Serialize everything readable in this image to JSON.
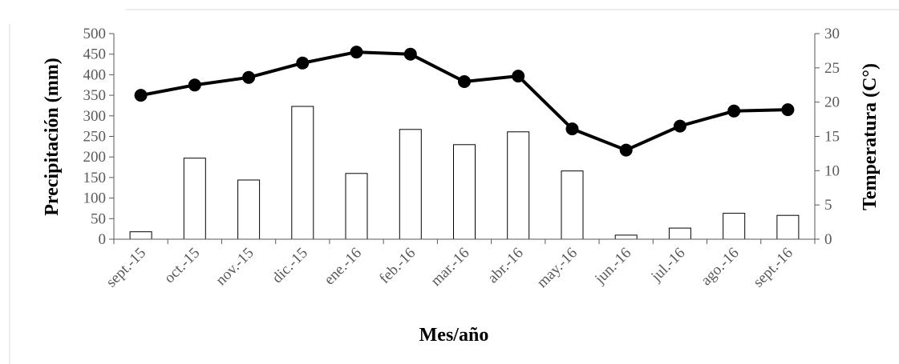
{
  "chart_data": {
    "type": "bar",
    "categories": [
      "sept.-15",
      "oct.-15",
      "nov.-15",
      "dic.-15",
      "ene.-16",
      "feb.-16",
      "mar.-16",
      "abr.-16",
      "may.-16",
      "jun.-16",
      "jul.-16",
      "ago.-16",
      "sept.-16"
    ],
    "series": [
      {
        "type": "bar",
        "axis": "left",
        "values": [
          18,
          197,
          144,
          323,
          160,
          267,
          230,
          261,
          166,
          10,
          27,
          63,
          58
        ]
      },
      {
        "type": "line",
        "axis": "right",
        "values": [
          21.0,
          22.5,
          23.6,
          25.7,
          27.3,
          27.0,
          23.0,
          23.8,
          16.1,
          13.0,
          16.5,
          18.7,
          18.9
        ]
      }
    ],
    "xlabel": "Mes/año",
    "ylabel": "Precipitación (mm)",
    "y2label": "Temperatura (C°)",
    "ylim": [
      0,
      500
    ],
    "y2lim": [
      0,
      30
    ],
    "yticks": [
      "0",
      "50",
      "100",
      "150",
      "200",
      "250",
      "300",
      "350",
      "400",
      "450",
      "500"
    ],
    "y2ticks": [
      "0",
      "5",
      "10",
      "15",
      "20",
      "25",
      "30"
    ],
    "grid": false,
    "legend": "none",
    "colors": {
      "bar_fill": "#ffffff",
      "bar_stroke": "#000000",
      "line": "#000000",
      "marker": "#000000",
      "axis": "#595959",
      "frame": "#d9d9d9"
    }
  }
}
